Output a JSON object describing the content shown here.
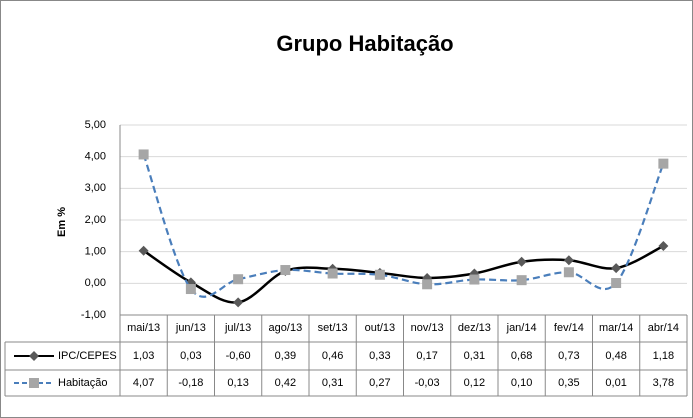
{
  "chart_data": {
    "type": "line",
    "title": "Grupo Habitação",
    "y_label": "Em %",
    "categories": [
      "mai/13",
      "jun/13",
      "jul/13",
      "ago/13",
      "set/13",
      "out/13",
      "nov/13",
      "dez/13",
      "jan/14",
      "fev/14",
      "mar/14",
      "abr/14"
    ],
    "series": [
      {
        "name": "IPC/CEPES",
        "color": "#000000",
        "marker_color": "#595959",
        "marker": "diamond",
        "dash": false,
        "values": [
          1.03,
          0.03,
          -0.6,
          0.39,
          0.46,
          0.33,
          0.17,
          0.31,
          0.68,
          0.73,
          0.48,
          1.18
        ],
        "value_labels": [
          "1,03",
          "0,03",
          "-0,60",
          "0,39",
          "0,46",
          "0,33",
          "0,17",
          "0,31",
          "0,68",
          "0,73",
          "0,48",
          "1,18"
        ]
      },
      {
        "name": "Habitação",
        "color": "#4a7ebb",
        "marker_color": "#a6a6a6",
        "marker": "square",
        "dash": true,
        "values": [
          4.07,
          -0.18,
          0.13,
          0.42,
          0.31,
          0.27,
          -0.03,
          0.12,
          0.1,
          0.35,
          0.01,
          3.78
        ],
        "value_labels": [
          "4,07",
          "-0,18",
          "0,13",
          "0,42",
          "0,31",
          "0,27",
          "-0,03",
          "0,12",
          "0,10",
          "0,35",
          "0,01",
          "3,78"
        ]
      }
    ],
    "ylim": [
      -1,
      5
    ],
    "yticks": [
      {
        "value": -1,
        "label": "-1,00"
      },
      {
        "value": 0,
        "label": "0,00"
      },
      {
        "value": 1,
        "label": "1,00"
      },
      {
        "value": 2,
        "label": "2,00"
      },
      {
        "value": 3,
        "label": "3,00"
      },
      {
        "value": 4,
        "label": "4,00"
      },
      {
        "value": 5,
        "label": "5,00"
      }
    ],
    "grid": true,
    "smooth": true
  }
}
